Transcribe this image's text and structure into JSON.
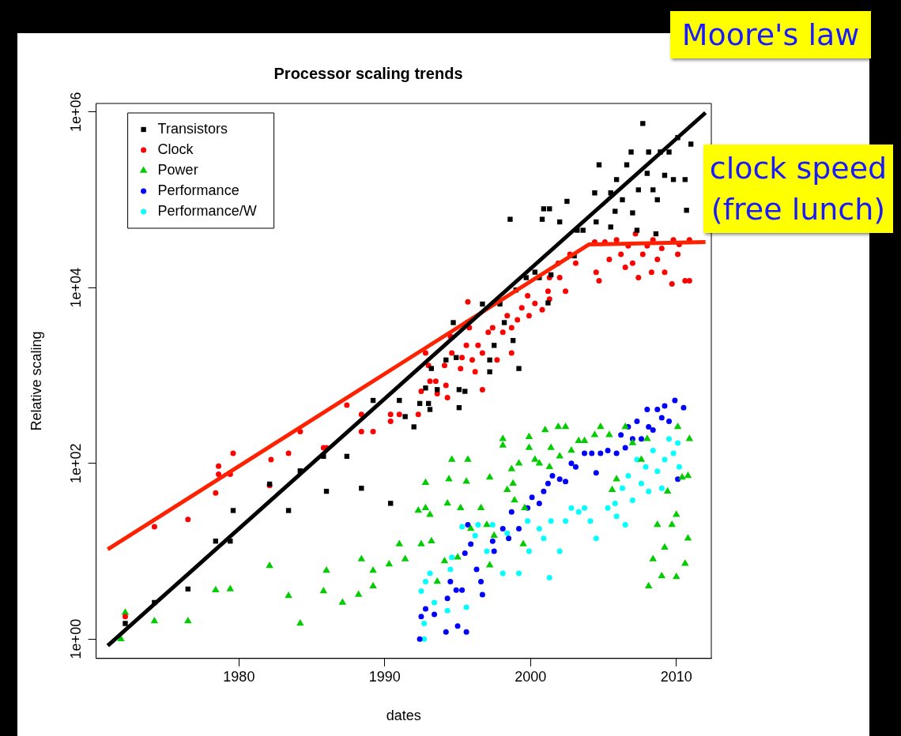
{
  "chart_data": {
    "type": "scatter",
    "title": "Processor scaling trends",
    "xlabel": "dates",
    "ylabel": "Relative scaling",
    "annotations": [
      "Moore's law",
      "clock speed (free lunch)"
    ],
    "log": "y",
    "grid": false,
    "legend": "top left",
    "xlim": [
      1970.2,
      2012.4
    ],
    "xticks": [
      1980,
      1990,
      2000,
      2010
    ],
    "ylim": [
      0.6,
      1250000
    ],
    "yticks": [
      {
        "value": 1,
        "label": "1e+00"
      },
      {
        "value": 100,
        "label": "1e+02"
      },
      {
        "value": 10000,
        "label": "1e+04"
      },
      {
        "value": 1000000,
        "label": "1e+06"
      }
    ],
    "series": [
      {
        "name": "Transistors",
        "color": "#000000",
        "marker": "square",
        "x": [
          1972.2,
          1974.2,
          1976.5,
          1978.4,
          1979.4,
          1979.6,
          1982.1,
          1983.4,
          1984.2,
          1985.8,
          1986.0,
          1987.4,
          1988.4,
          1989.2,
          1990.4,
          1991.0,
          1991.4,
          1992.0,
          1992.4,
          1992.8,
          1993.0,
          1993.1,
          1993.2,
          1993.6,
          1994.2,
          1994.7,
          1994.9,
          1995.1,
          1995.1,
          1995.5,
          1995.7,
          1996.7,
          1997.2,
          1997.2,
          1997.5,
          1997.9,
          1998.2,
          1998.6,
          1998.8,
          1999.0,
          1999.2,
          1999.7,
          2000.3,
          2000.6,
          2000.8,
          2000.9,
          2001.3,
          2001.4,
          2002.0,
          2002.5,
          2001.2,
          2003.0,
          2003.2,
          2003.6,
          2004.4,
          2004.5,
          2004.7,
          2005.5,
          2005.5,
          2005.8,
          2005.9,
          2006.3,
          2006.6,
          2006.9,
          2007.0,
          2007.3,
          2007.4,
          2007.7,
          2008.0,
          2008.1,
          2008.4,
          2008.6,
          2008.7,
          2008.9,
          2009.2,
          2009.5,
          2009.8,
          2010.1,
          2010.6,
          2010.7,
          2011.0
        ],
        "values": [
          1.5,
          2.6,
          3.7,
          13,
          13,
          29,
          58,
          29,
          82,
          120,
          48,
          120,
          52,
          520,
          35,
          520,
          340,
          260,
          480,
          720,
          480,
          410,
          1200,
          690,
          1500,
          4000,
          1600,
          430,
          690,
          660,
          4000,
          6500,
          1500,
          1100,
          2200,
          6500,
          4000,
          60000,
          2500,
          9400,
          1200,
          13000,
          15000,
          13000,
          60000,
          79000,
          79000,
          14000,
          56000,
          96000,
          6700,
          23000,
          45000,
          45000,
          120000,
          56000,
          250000,
          120000,
          49000,
          74000,
          170000,
          100000,
          250000,
          350000,
          71000,
          45000,
          130000,
          740000,
          200000,
          350000,
          130000,
          41000,
          100000,
          350000,
          190000,
          350000,
          170000,
          510000,
          170000,
          76000,
          430000
        ]
      },
      {
        "name": "Clock",
        "color": "#ff0000",
        "marker": "circle",
        "x": [
          1972.2,
          1974.2,
          1976.5,
          1978.4,
          1978.6,
          1978.6,
          1979.4,
          1979.6,
          1982.1,
          1982.2,
          1983.4,
          1984.2,
          1985.8,
          1986.0,
          1987.4,
          1988.4,
          1988.4,
          1989.2,
          1990.4,
          1990.4,
          1991.0,
          1992.3,
          1992.5,
          1992.8,
          1993.0,
          1993.1,
          1993.5,
          1993.6,
          1994.1,
          1994.2,
          1994.3,
          1994.5,
          1994.6,
          1995.2,
          1995.3,
          1995.6,
          1995.7,
          1995.8,
          1996.0,
          1996.2,
          1996.4,
          1996.7,
          1996.7,
          1997.1,
          1997.4,
          1997.7,
          1998.1,
          1998.4,
          1998.7,
          1998.7,
          1999.1,
          1999.4,
          1999.8,
          1999.9,
          2000.3,
          2000.8,
          2001.2,
          2001.3,
          2001.3,
          2001.9,
          2002.0,
          2002.4,
          2002.7,
          2003.1,
          2004.4,
          2004.5,
          2004.7,
          2005.1,
          2005.4,
          2005.9,
          2006.2,
          2006.5,
          2006.7,
          2007.0,
          2007.2,
          2007.4,
          2007.7,
          2008.0,
          2008.3,
          2008.4,
          2008.7,
          2009.0,
          2009.2,
          2009.7,
          2009.8,
          2010.1,
          2010.2,
          2010.6,
          2010.9,
          2010.9
        ],
        "values": [
          1.8,
          19,
          23,
          46,
          93,
          75,
          75,
          130,
          56,
          110,
          130,
          230,
          150,
          150,
          460,
          360,
          230,
          230,
          360,
          300,
          360,
          360,
          660,
          1800,
          1300,
          860,
          860,
          620,
          1300,
          770,
          560,
          2800,
          1800,
          1200,
          1600,
          2200,
          6900,
          3500,
          1500,
          1100,
          2200,
          690,
          1800,
          3100,
          3500,
          1500,
          3100,
          4800,
          1800,
          3500,
          4300,
          5900,
          8100,
          4800,
          6600,
          5600,
          9100,
          13000,
          7400,
          19000,
          13000,
          9100,
          24000,
          19000,
          33000,
          15000,
          12000,
          33000,
          21000,
          35000,
          24000,
          17000,
          30000,
          19000,
          41000,
          13000,
          24000,
          30000,
          15000,
          35000,
          21000,
          28000,
          15000,
          11000,
          35000,
          24000,
          31000,
          12000,
          35000,
          12000
        ]
      },
      {
        "name": "Power",
        "color": "#00cc00",
        "marker": "triangle",
        "x": [
          1971.9,
          1972.2,
          1974.2,
          1976.5,
          1978.4,
          1979.4,
          1982.1,
          1983.4,
          1984.2,
          1985.8,
          1986.0,
          1987.1,
          1988.2,
          1988.4,
          1989.2,
          1989.2,
          1990.3,
          1991.0,
          1991.4,
          1992.3,
          1992.8,
          1992.8,
          1993.1,
          1992.5,
          1993.2,
          1993.6,
          1994.1,
          1994.3,
          1994.4,
          1994.6,
          1995.0,
          1995.2,
          1995.6,
          1995.7,
          1995.9,
          1996.6,
          1997.0,
          1997.2,
          1997.2,
          1997.5,
          1998.1,
          1998.1,
          1998.4,
          1998.7,
          1998.8,
          1998.9,
          1999.2,
          1999.5,
          1999.6,
          1999.9,
          1999.9,
          2000.3,
          2000.6,
          2001.0,
          2001.3,
          2001.4,
          2001.9,
          2002.0,
          2002.4,
          2002.8,
          2003.3,
          2003.7,
          2004.4,
          2004.8,
          2005.4,
          2005.6,
          2005.9,
          2006.5,
          2007.0,
          2007.6,
          2008.0,
          2008.1,
          2008.4,
          2008.7,
          2009.0,
          2009.2,
          2009.4,
          2009.7,
          2010.0,
          2010.0,
          2010.1,
          2010.4,
          2010.6,
          2010.8,
          2010.8,
          2010.9
        ],
        "values": [
          1.0,
          2.0,
          1.6,
          1.6,
          3.6,
          3.7,
          6.8,
          3.1,
          1.5,
          3.5,
          6.0,
          2.6,
          3.2,
          8.1,
          4.0,
          6.0,
          7.1,
          12,
          8.1,
          29,
          60,
          31,
          26,
          12,
          13,
          4.5,
          7.7,
          35,
          66,
          110,
          8.5,
          31,
          62,
          110,
          18,
          31,
          20,
          69,
          6.9,
          15,
          190,
          160,
          50,
          86,
          59,
          38,
          100,
          12,
          31,
          200,
          150,
          110,
          100,
          240,
          91,
          150,
          260,
          120,
          260,
          140,
          180,
          180,
          210,
          260,
          210,
          50,
          66,
          260,
          170,
          110,
          190,
          4.0,
          8.1,
          20,
          5.2,
          11,
          48,
          20,
          26,
          5.1,
          260,
          69,
          7.2,
          72,
          14,
          190
        ]
      },
      {
        "name": "Performance",
        "color": "#0000ff",
        "marker": "circle",
        "x": [
          1992.4,
          1992.5,
          1992.8,
          1993.4,
          1994.2,
          1994.3,
          1994.5,
          1994.9,
          1995.0,
          1995.3,
          1995.5,
          1995.6,
          1995.7,
          1995.9,
          1996.3,
          1996.6,
          1996.7,
          1997.4,
          1997.5,
          1998.1,
          1998.5,
          1998.7,
          1999.2,
          1999.8,
          2000.1,
          2000.6,
          2000.9,
          2001.2,
          2001.5,
          2002.0,
          2002.4,
          2002.8,
          2003.1,
          2003.7,
          2004.2,
          2004.5,
          2004.8,
          2005.3,
          2005.9,
          2006.2,
          2006.5,
          2006.7,
          2007.0,
          2007.3,
          2007.6,
          2008.0,
          2008.1,
          2008.4,
          2008.7,
          2009.0,
          2009.2,
          2009.5,
          2009.9,
          2010.1,
          2010.5
        ],
        "values": [
          1.0,
          1.8,
          2.2,
          1.9,
          1.2,
          2.9,
          4.5,
          3.6,
          1.4,
          3.6,
          9.5,
          1.2,
          20,
          12,
          6.2,
          4.5,
          3.2,
          13,
          10,
          18,
          14,
          28,
          18,
          31,
          41,
          35,
          48,
          59,
          72,
          66,
          62,
          100,
          91,
          130,
          130,
          78,
          130,
          140,
          130,
          210,
          150,
          260,
          190,
          300,
          190,
          410,
          260,
          240,
          410,
          330,
          450,
          300,
          520,
          66,
          430
        ]
      },
      {
        "name": "Performance/W",
        "color": "#00ffff",
        "marker": "circle",
        "x": [
          1992.7,
          1992.7,
          1992.5,
          1992.8,
          1993.1,
          1993.4,
          1994.3,
          1994.5,
          1994.6,
          1995.3,
          1995.6,
          1996.2,
          1996.4,
          1997.0,
          1997.4,
          1998.1,
          1998.4,
          1999.2,
          1999.8,
          1999.9,
          2000.6,
          2000.9,
          2001.3,
          2001.4,
          2002.0,
          2002.4,
          2002.8,
          2003.3,
          2003.7,
          2004.1,
          2004.5,
          2005.3,
          2005.8,
          2005.9,
          2006.3,
          2006.5,
          2006.7,
          2007.0,
          2007.3,
          2007.6,
          2007.9,
          2008.1,
          2008.4,
          2008.7,
          2009.0,
          2009.2,
          2009.5,
          2009.8,
          2010.1,
          2010.2
        ],
        "values": [
          1.0,
          1.5,
          3.5,
          4.5,
          5.6,
          2.6,
          2.1,
          6.2,
          8.5,
          19,
          2.3,
          15,
          20,
          10,
          20,
          5.6,
          16,
          5.6,
          22,
          10,
          18,
          14,
          5.0,
          22,
          10,
          22,
          31,
          28,
          31,
          22,
          14,
          31,
          35,
          25,
          52,
          20,
          72,
          38,
          110,
          59,
          91,
          48,
          140,
          81,
          52,
          110,
          190,
          130,
          170,
          91
        ]
      },
      {
        "type": "line",
        "color": "#000000",
        "marker": "none",
        "x": [
          1971,
          2012
        ],
        "values": [
          0.84,
          980000
        ]
      },
      {
        "type": "line",
        "color": "#ff2200",
        "marker": "none",
        "x": [
          1971,
          2004,
          2012
        ],
        "values": [
          10.5,
          31000,
          33000
        ]
      }
    ]
  }
}
